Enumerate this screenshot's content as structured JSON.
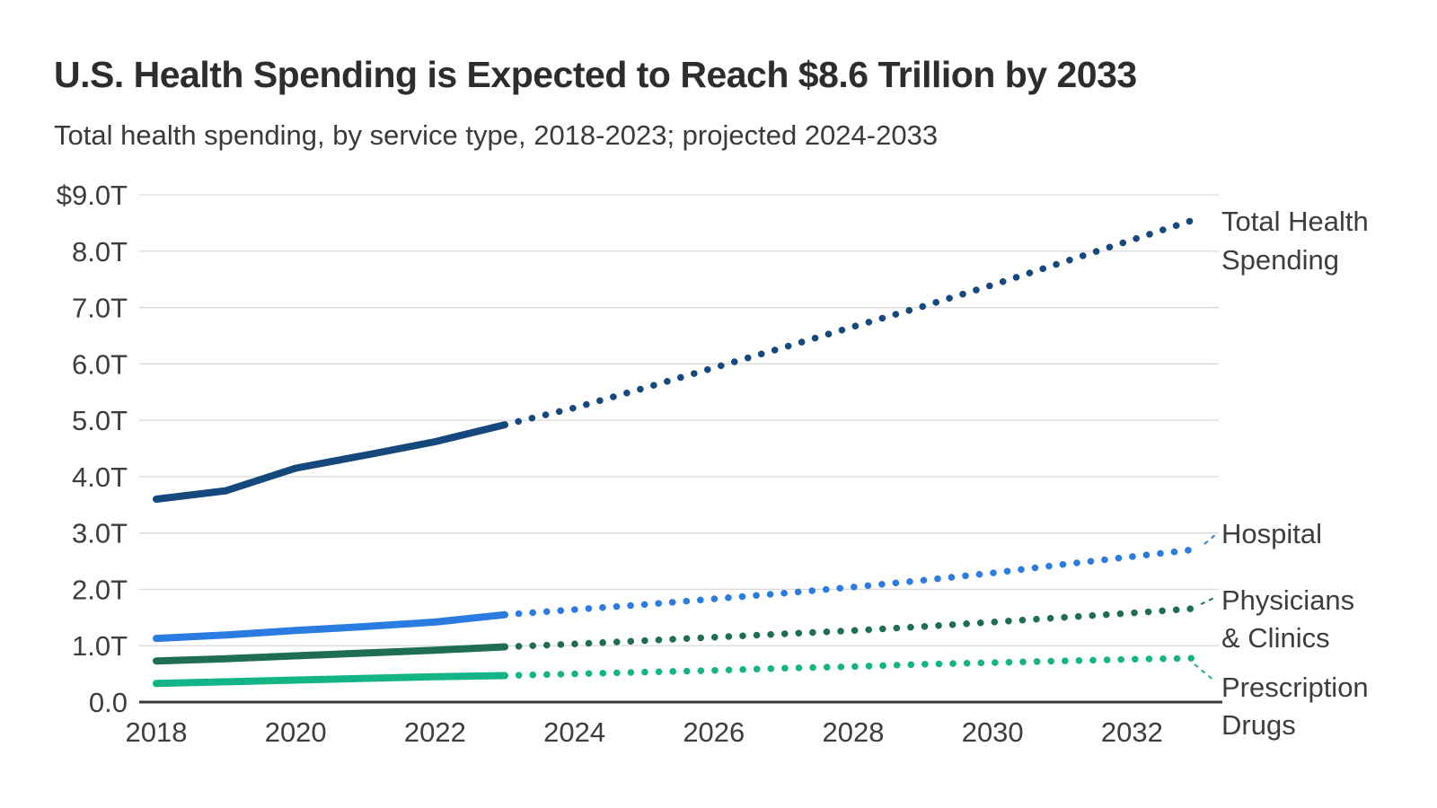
{
  "page": {
    "background": "#ffffff"
  },
  "chart": {
    "title": "U.S. Health Spending is Expected to Reach $8.6 Trillion by 2033",
    "subtitle": "Total health spending, by service type, 2018-2023; projected 2024-2033"
  },
  "chart_data": {
    "type": "line",
    "x": [
      2018,
      2019,
      2020,
      2021,
      2022,
      2023,
      2024,
      2025,
      2026,
      2027,
      2028,
      2029,
      2030,
      2031,
      2032,
      2033
    ],
    "x_tick_labels": [
      "2018",
      "2020",
      "2022",
      "2024",
      "2026",
      "2028",
      "2030",
      "2032"
    ],
    "x_ticks": [
      2018,
      2020,
      2022,
      2024,
      2026,
      2028,
      2030,
      2032
    ],
    "y_ticks": [
      9,
      8,
      7,
      6,
      5,
      4,
      3,
      2,
      1,
      0
    ],
    "y_tick_labels": [
      "$9.0T",
      "8.0T",
      "7.0T",
      "6.0T",
      "5.0T",
      "4.0T",
      "3.0T",
      "2.0T",
      "1.0T",
      "0.0"
    ],
    "ylim": [
      0,
      9
    ],
    "xlim": [
      2018,
      2033
    ],
    "units": "trillions of US dollars",
    "grid": "horizontal",
    "legend_position": "right-edge-labels",
    "historical_through": 2023,
    "projected_from": 2024,
    "projected_style": "dotted",
    "axis_color": "#3b3b3b",
    "grid_color": "#d9d9d9",
    "label_color": "#3d3d3d",
    "series": [
      {
        "name": "Total Health Spending",
        "label_lines": [
          "Total Health",
          "Spending"
        ],
        "color": "#15497e",
        "values": [
          3.6,
          3.75,
          4.15,
          4.38,
          4.62,
          4.92,
          5.22,
          5.57,
          5.93,
          6.29,
          6.66,
          7.02,
          7.4,
          7.8,
          8.2,
          8.6
        ]
      },
      {
        "name": "Hospital",
        "label_lines": [
          "Hospital"
        ],
        "color": "#2b7ce0",
        "values": [
          1.13,
          1.19,
          1.27,
          1.34,
          1.42,
          1.55,
          1.64,
          1.73,
          1.83,
          1.93,
          2.04,
          2.16,
          2.29,
          2.44,
          2.58,
          2.72
        ]
      },
      {
        "name": "Physicians & Clinics",
        "label_lines": [
          "Physicians",
          "& Clinics"
        ],
        "color": "#1f6e54",
        "values": [
          0.73,
          0.77,
          0.82,
          0.87,
          0.92,
          0.98,
          1.03,
          1.09,
          1.15,
          1.21,
          1.27,
          1.34,
          1.42,
          1.5,
          1.58,
          1.67
        ]
      },
      {
        "name": "Prescription Drugs",
        "label_lines": [
          "Prescription",
          "Drugs"
        ],
        "color": "#13b586",
        "values": [
          0.33,
          0.36,
          0.39,
          0.42,
          0.45,
          0.47,
          0.5,
          0.53,
          0.56,
          0.6,
          0.63,
          0.67,
          0.7,
          0.73,
          0.76,
          0.78
        ]
      }
    ]
  }
}
